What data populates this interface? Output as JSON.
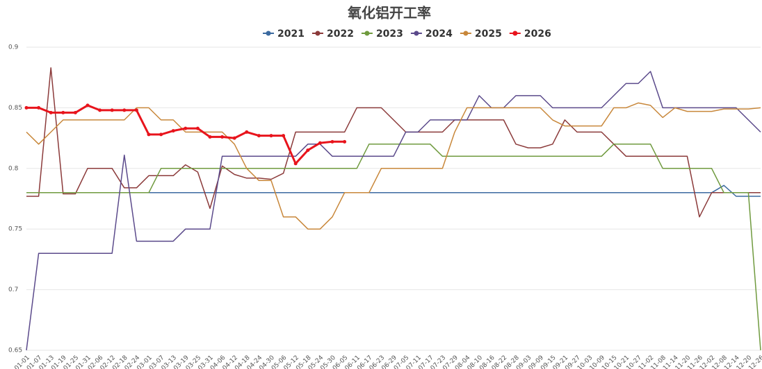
{
  "chart_data": {
    "type": "line",
    "title": "氧化铝开工率",
    "categories": [
      "01-01",
      "01-07",
      "01-13",
      "01-19",
      "01-25",
      "01-31",
      "02-06",
      "02-12",
      "02-18",
      "02-24",
      "03-01",
      "03-07",
      "03-13",
      "03-19",
      "03-25",
      "03-31",
      "04-06",
      "04-12",
      "04-18",
      "04-24",
      "04-30",
      "05-06",
      "05-12",
      "05-18",
      "05-24",
      "05-30",
      "06-05",
      "06-11",
      "06-17",
      "06-23",
      "06-29",
      "07-05",
      "07-11",
      "07-17",
      "07-23",
      "07-29",
      "08-04",
      "08-10",
      "08-16",
      "08-22",
      "08-28",
      "09-03",
      "09-09",
      "09-15",
      "09-21",
      "09-27",
      "10-03",
      "10-09",
      "10-15",
      "10-21",
      "10-27",
      "11-02",
      "11-08",
      "11-14",
      "11-20",
      "11-26",
      "12-02",
      "12-08",
      "12-14",
      "12-20",
      "12-26"
    ],
    "series": [
      {
        "name": "2021",
        "color": "#3b6aa0",
        "values": [
          0.78,
          0.78,
          0.78,
          0.78,
          0.78,
          0.78,
          0.78,
          0.78,
          0.78,
          0.78,
          0.78,
          0.78,
          0.78,
          0.78,
          0.78,
          0.78,
          0.78,
          0.78,
          0.78,
          0.78,
          0.78,
          0.78,
          0.78,
          0.78,
          0.78,
          0.78,
          0.78,
          0.78,
          0.78,
          0.78,
          0.78,
          0.78,
          0.78,
          0.78,
          0.78,
          0.78,
          0.78,
          0.78,
          0.78,
          0.78,
          0.78,
          0.78,
          0.78,
          0.78,
          0.78,
          0.78,
          0.78,
          0.78,
          0.78,
          0.78,
          0.78,
          0.78,
          0.78,
          0.78,
          0.78,
          0.78,
          0.78,
          0.786,
          0.777,
          0.777,
          0.777
        ]
      },
      {
        "name": "2022",
        "color": "#8b3a3a",
        "values": [
          0.777,
          0.777,
          0.883,
          0.779,
          0.779,
          0.8,
          0.8,
          0.8,
          0.784,
          0.784,
          0.794,
          0.794,
          0.794,
          0.803,
          0.797,
          0.767,
          0.802,
          0.795,
          0.792,
          0.792,
          0.791,
          0.796,
          0.83,
          0.83,
          0.83,
          0.83,
          0.83,
          0.85,
          0.85,
          0.85,
          0.84,
          0.83,
          0.83,
          0.83,
          0.83,
          0.84,
          0.84,
          0.84,
          0.84,
          0.84,
          0.82,
          0.817,
          0.817,
          0.82,
          0.84,
          0.83,
          0.83,
          0.83,
          0.82,
          0.81,
          0.81,
          0.81,
          0.81,
          0.81,
          0.81,
          0.76,
          0.78,
          0.78,
          0.78,
          0.78,
          0.78
        ]
      },
      {
        "name": "2023",
        "color": "#6f9a3e",
        "values": [
          0.78,
          0.78,
          0.78,
          0.78,
          0.78,
          0.78,
          0.78,
          0.78,
          0.78,
          0.78,
          0.78,
          0.8,
          0.8,
          0.8,
          0.8,
          0.8,
          0.8,
          0.8,
          0.8,
          0.8,
          0.8,
          0.8,
          0.8,
          0.8,
          0.8,
          0.8,
          0.8,
          0.8,
          0.82,
          0.82,
          0.82,
          0.82,
          0.82,
          0.82,
          0.81,
          0.81,
          0.81,
          0.81,
          0.81,
          0.81,
          0.81,
          0.81,
          0.81,
          0.81,
          0.81,
          0.81,
          0.81,
          0.81,
          0.82,
          0.82,
          0.82,
          0.82,
          0.8,
          0.8,
          0.8,
          0.8,
          0.8,
          0.78,
          0.78,
          0.78,
          0.65
        ]
      },
      {
        "name": "2024",
        "color": "#5b4a8b",
        "values": [
          0.65,
          0.73,
          0.73,
          0.73,
          0.73,
          0.73,
          0.73,
          0.73,
          0.811,
          0.74,
          0.74,
          0.74,
          0.74,
          0.75,
          0.75,
          0.75,
          0.81,
          0.81,
          0.81,
          0.81,
          0.81,
          0.81,
          0.81,
          0.82,
          0.82,
          0.81,
          0.81,
          0.81,
          0.81,
          0.81,
          0.81,
          0.83,
          0.83,
          0.84,
          0.84,
          0.84,
          0.84,
          0.86,
          0.85,
          0.85,
          0.86,
          0.86,
          0.86,
          0.85,
          0.85,
          0.85,
          0.85,
          0.85,
          0.86,
          0.87,
          0.87,
          0.88,
          0.85,
          0.85,
          0.85,
          0.85,
          0.85,
          0.85,
          0.85,
          0.84,
          0.83
        ]
      },
      {
        "name": "2025",
        "color": "#c8873a",
        "values": [
          0.83,
          0.82,
          0.83,
          0.84,
          0.84,
          0.84,
          0.84,
          0.84,
          0.84,
          0.85,
          0.85,
          0.84,
          0.84,
          0.83,
          0.83,
          0.83,
          0.83,
          0.82,
          0.8,
          0.79,
          0.79,
          0.76,
          0.76,
          0.75,
          0.75,
          0.76,
          0.78,
          0.78,
          0.78,
          0.8,
          0.8,
          0.8,
          0.8,
          0.8,
          0.8,
          0.83,
          0.85,
          0.85,
          0.85,
          0.85,
          0.85,
          0.85,
          0.85,
          0.84,
          0.835,
          0.835,
          0.835,
          0.835,
          0.85,
          0.85,
          0.854,
          0.852,
          0.842,
          0.85,
          0.847,
          0.847,
          0.847,
          0.849,
          0.849,
          0.849,
          0.85
        ]
      },
      {
        "name": "2026",
        "color": "#e8141c",
        "width": 3,
        "markers": true,
        "values": [
          0.85,
          0.85,
          0.846,
          0.846,
          0.846,
          0.852,
          0.848,
          0.848,
          0.848,
          0.848,
          0.828,
          0.828,
          0.831,
          0.833,
          0.833,
          0.826,
          0.826,
          0.825,
          0.83,
          0.827,
          0.827,
          0.827,
          0.804,
          0.815,
          0.821,
          0.822,
          0.822,
          null,
          null,
          null,
          null,
          null,
          null,
          null,
          null,
          null,
          null,
          null,
          null,
          null,
          null,
          null,
          null,
          null,
          null,
          null,
          null,
          null,
          null,
          null,
          null,
          null,
          null,
          null,
          null,
          null,
          null,
          null,
          null,
          null,
          null
        ]
      }
    ],
    "ylim": [
      0.65,
      0.9
    ],
    "yticks": [
      0.65,
      0.7,
      0.75,
      0.8,
      0.85,
      0.9
    ],
    "grid": true
  }
}
